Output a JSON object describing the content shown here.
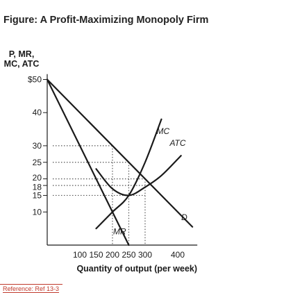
{
  "title": "Figure: A Profit-Maximizing Monopoly Firm",
  "reference": "Reference: Ref 13-3",
  "chart_data": {
    "type": "line",
    "ylabel_lines": [
      "P, MR,",
      "MC, ATC"
    ],
    "xlabel": "Quantity of output (per week)",
    "xlim": [
      0,
      460
    ],
    "ylim": [
      0,
      51
    ],
    "x_ticks": [
      100,
      150,
      200,
      250,
      300,
      400
    ],
    "x_tick_labels": [
      "100",
      "150",
      "200",
      "250",
      "300",
      "400"
    ],
    "y_ticks": [
      50,
      40,
      30,
      25,
      20,
      18,
      15,
      10
    ],
    "y_tick_labels": [
      "$50",
      "40",
      "30",
      "25",
      "20",
      "18",
      "15",
      "10"
    ],
    "series": [
      {
        "name": "D",
        "x": [
          0,
          500
        ],
        "y": [
          50,
          0
        ]
      },
      {
        "name": "MR",
        "x": [
          0,
          250
        ],
        "y": [
          50,
          0
        ]
      },
      {
        "name": "MC",
        "x": [
          150,
          200,
          250,
          300,
          350
        ],
        "y": [
          5,
          10,
          15,
          25,
          38
        ]
      },
      {
        "name": "ATC",
        "x": [
          150,
          200,
          250,
          300,
          350,
          410
        ],
        "y": [
          23,
          17,
          15,
          17.5,
          21,
          27
        ]
      }
    ],
    "dotted_guides": [
      {
        "y": 30,
        "x_end": 200
      },
      {
        "y": 25,
        "x_end": 250
      },
      {
        "y": 20,
        "x_end": 300
      },
      {
        "y": 18,
        "x_end": 300
      },
      {
        "y": 15,
        "x_end": 300
      },
      {
        "x": 200,
        "y_top": 30
      },
      {
        "x": 250,
        "y_top": 25
      },
      {
        "x": 300,
        "y_top": 20
      }
    ],
    "curve_labels": [
      {
        "text": "MC",
        "x": 355,
        "y": 33.5
      },
      {
        "text": "ATC",
        "x": 400,
        "y": 30
      },
      {
        "text": "D",
        "x": 420,
        "y": 7.5
      },
      {
        "text": "MR",
        "x": 222,
        "y": 3.2
      }
    ],
    "grid": false
  }
}
